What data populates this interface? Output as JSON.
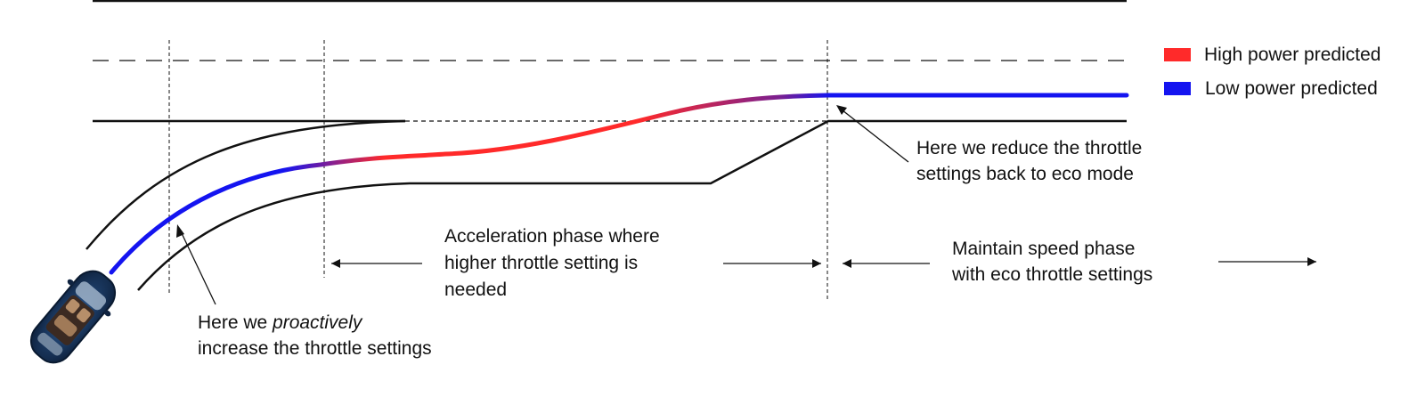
{
  "legend": {
    "items": [
      {
        "label": "High power predicted",
        "color": "#ff2a2a"
      },
      {
        "label": "Low power predicted",
        "color": "#1414f0"
      }
    ]
  },
  "annotations": {
    "proactive": {
      "prefix": "Here we ",
      "emphasis": "proactively",
      "line2": "increase the throttle settings"
    },
    "reduce": {
      "line1": "Here we reduce the throttle",
      "line2": "settings back to eco mode"
    },
    "acceleration": {
      "line1": "Acceleration phase where",
      "line2": "higher throttle setting is",
      "line3": "needed"
    },
    "maintain": {
      "line1": "Maintain speed phase",
      "line2": "with eco throttle settings"
    }
  },
  "colors": {
    "high_power": "#ff2a2a",
    "low_power": "#1414f0",
    "lines": "#111111",
    "car_body": "#1d3a63"
  },
  "icons": {
    "car": "car-icon"
  }
}
